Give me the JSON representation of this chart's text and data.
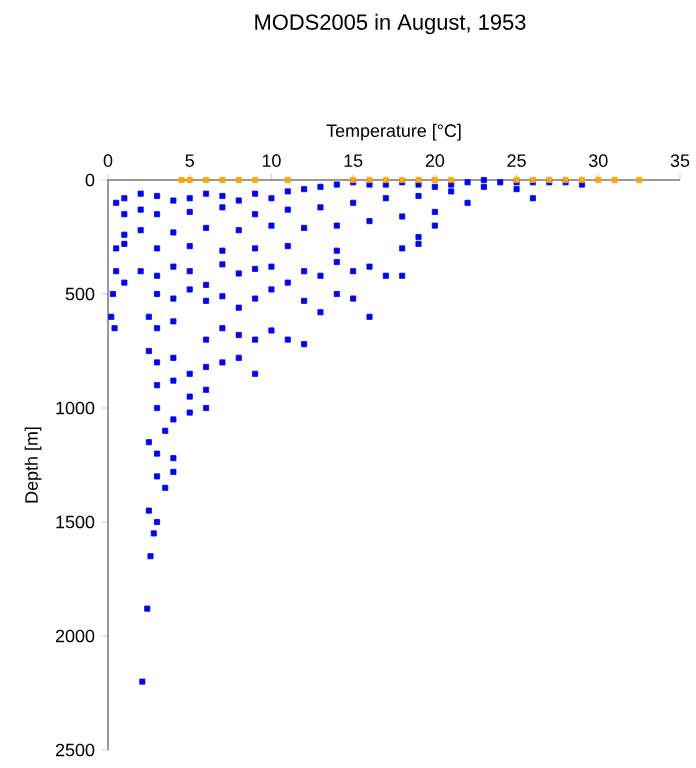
{
  "chart_data": {
    "type": "scatter",
    "title": "MODS2005 in August, 1953",
    "xlabel": "Temperature [°C]",
    "ylabel": "Depth [m]",
    "xlim": [
      0,
      35
    ],
    "ylim": [
      2500,
      0
    ],
    "xticks": [
      0,
      5,
      10,
      15,
      20,
      25,
      30,
      35
    ],
    "yticks": [
      0,
      500,
      1000,
      1500,
      2000,
      2500
    ],
    "marker": "square",
    "series": [
      {
        "color": "#0000ff",
        "x": [
          0.5,
          1,
          2,
          3,
          4,
          5,
          6,
          7,
          8,
          9,
          10,
          11,
          12,
          13,
          14,
          15,
          16,
          17,
          18,
          19,
          20,
          21,
          22,
          23,
          24,
          25,
          26,
          27,
          28,
          29,
          1,
          2,
          3,
          5,
          7,
          9,
          11,
          13,
          15,
          17,
          19,
          21,
          23,
          25,
          26,
          22,
          20,
          18,
          16,
          14,
          12,
          10,
          8,
          6,
          4,
          2,
          1,
          0.5,
          1,
          3,
          5,
          7,
          9,
          11,
          14,
          18,
          19,
          20,
          19,
          0.5,
          0.3,
          0.2,
          0.4,
          1,
          2,
          3,
          4,
          5,
          6,
          7,
          8,
          9,
          10,
          11,
          12,
          13,
          14,
          15,
          16,
          17,
          3,
          4,
          5,
          6,
          7,
          8,
          9,
          10,
          12,
          13,
          14,
          15,
          16,
          18,
          2.5,
          3,
          4,
          6,
          7,
          8,
          9,
          10,
          11,
          12,
          2.5,
          3,
          4,
          5,
          6,
          7,
          8,
          9,
          3,
          4,
          5,
          6,
          3,
          4,
          5,
          6,
          3.5,
          2.5,
          3,
          4,
          3,
          3.5,
          4,
          2.5,
          3,
          2.8,
          2.6,
          2.4,
          2.1
        ],
        "values": [
          100,
          80,
          60,
          70,
          90,
          80,
          60,
          70,
          90,
          60,
          80,
          50,
          40,
          30,
          20,
          10,
          20,
          20,
          10,
          20,
          30,
          20,
          10,
          0,
          10,
          10,
          10,
          10,
          10,
          20,
          150,
          130,
          150,
          140,
          120,
          150,
          130,
          120,
          100,
          80,
          70,
          50,
          30,
          40,
          80,
          100,
          140,
          160,
          180,
          200,
          210,
          200,
          220,
          210,
          230,
          220,
          240,
          300,
          280,
          300,
          290,
          310,
          300,
          290,
          310,
          300,
          280,
          200,
          250,
          400,
          500,
          600,
          650,
          450,
          400,
          420,
          380,
          400,
          460,
          370,
          410,
          390,
          380,
          450,
          400,
          420,
          360,
          400,
          380,
          420,
          500,
          520,
          480,
          530,
          510,
          560,
          520,
          480,
          530,
          580,
          500,
          520,
          600,
          420,
          600,
          650,
          620,
          700,
          650,
          680,
          700,
          660,
          700,
          720,
          750,
          800,
          780,
          850,
          820,
          800,
          780,
          850,
          900,
          880,
          950,
          920,
          1000,
          1050,
          1020,
          1000,
          1100,
          1150,
          1200,
          1220,
          1300,
          1350,
          1280,
          1450,
          1500,
          1550,
          1650,
          1880,
          2200
        ]
      },
      {
        "color": "#ffa500",
        "x": [
          4.5,
          5,
          6,
          7,
          8,
          9,
          11,
          15,
          16,
          17,
          18,
          19,
          20,
          21,
          25,
          26,
          27,
          28,
          29,
          30,
          31,
          32.5
        ],
        "values": [
          0,
          0,
          0,
          0,
          0,
          0,
          0,
          0,
          0,
          0,
          0,
          0,
          0,
          0,
          0,
          0,
          0,
          0,
          0,
          0,
          0,
          0
        ]
      }
    ]
  }
}
